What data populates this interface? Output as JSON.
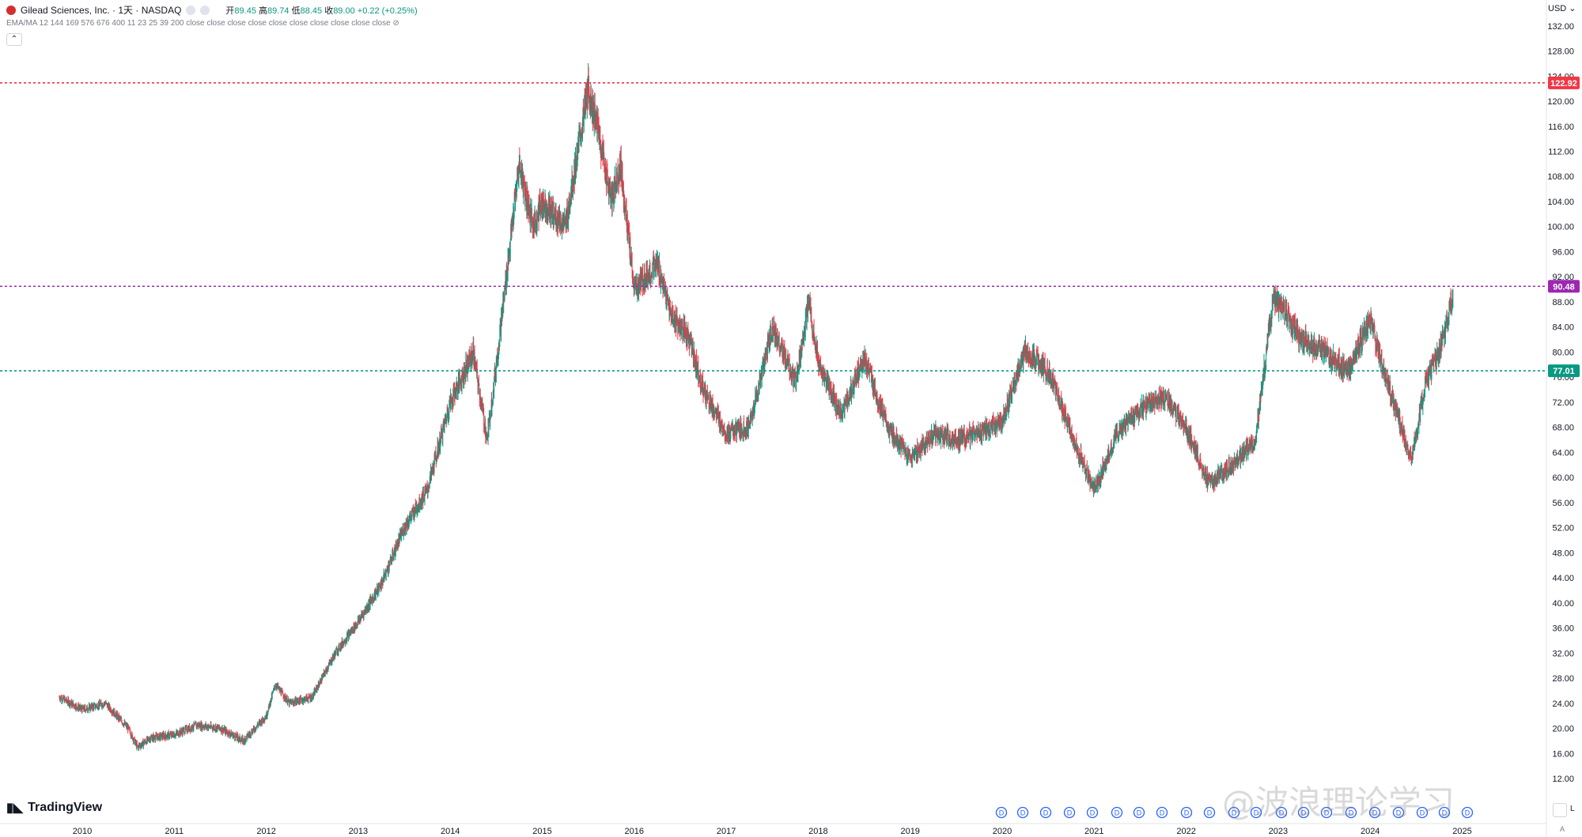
{
  "header": {
    "symbol": "Gilead Sciences, Inc. · 1天 · NASDAQ",
    "open_label": "开",
    "open": "89.45",
    "high_label": "高",
    "high": "89.74",
    "low_label": "低",
    "low": "88.45",
    "close_label": "收",
    "close": "89.00",
    "change": "+0.22 (+0.25%)",
    "indicator": "EMA/MA 12 144 169 576 676 400 11 23 25 39 200 close close close close close close close close close close"
  },
  "currency": "USD",
  "branding": "TradingView",
  "watermark": "@波浪理论学习",
  "colors": {
    "up": "#089981",
    "down": "#f23645",
    "red_line": "#f23645",
    "purple_line": "#9c27b0",
    "green_line": "#089981"
  },
  "chart_data": {
    "type": "line",
    "title": "Gilead Sciences, Inc. · 1天 · NASDAQ",
    "ylim": [
      12,
      132
    ],
    "yticks": [
      12,
      16,
      20,
      24,
      28,
      32,
      36,
      40,
      44,
      48,
      52,
      56,
      60,
      64,
      68,
      72,
      76,
      80,
      84,
      88,
      92,
      96,
      100,
      104,
      108,
      112,
      116,
      120,
      124,
      128,
      132
    ],
    "xticks": [
      "2010",
      "2011",
      "2012",
      "2013",
      "2014",
      "2015",
      "2016",
      "2017",
      "2018",
      "2019",
      "2020",
      "2021",
      "2022",
      "2023",
      "2024",
      "2025"
    ],
    "series": [
      {
        "values": [
          [
            2009.75,
            25
          ],
          [
            2010.0,
            23
          ],
          [
            2010.25,
            24
          ],
          [
            2010.5,
            20
          ],
          [
            2010.6,
            17
          ],
          [
            2010.75,
            18.5
          ],
          [
            2011.0,
            19
          ],
          [
            2011.25,
            20.5
          ],
          [
            2011.5,
            20
          ],
          [
            2011.75,
            18
          ],
          [
            2012.0,
            22
          ],
          [
            2012.1,
            27
          ],
          [
            2012.25,
            24
          ],
          [
            2012.5,
            25
          ],
          [
            2012.75,
            32
          ],
          [
            2013.0,
            37
          ],
          [
            2013.25,
            43
          ],
          [
            2013.5,
            52
          ],
          [
            2013.75,
            58
          ],
          [
            2014.0,
            72
          ],
          [
            2014.25,
            80
          ],
          [
            2014.4,
            66
          ],
          [
            2014.5,
            78
          ],
          [
            2014.75,
            110
          ],
          [
            2014.9,
            100
          ],
          [
            2015.0,
            104
          ],
          [
            2015.25,
            100
          ],
          [
            2015.5,
            122
          ],
          [
            2015.6,
            116
          ],
          [
            2015.75,
            104
          ],
          [
            2015.85,
            110
          ],
          [
            2016.0,
            90
          ],
          [
            2016.25,
            94
          ],
          [
            2016.4,
            86
          ],
          [
            2016.6,
            82
          ],
          [
            2016.75,
            74
          ],
          [
            2017.0,
            67
          ],
          [
            2017.25,
            68
          ],
          [
            2017.5,
            84
          ],
          [
            2017.75,
            75
          ],
          [
            2017.9,
            88
          ],
          [
            2018.0,
            78
          ],
          [
            2018.25,
            70
          ],
          [
            2018.5,
            79
          ],
          [
            2018.75,
            68
          ],
          [
            2019.0,
            63
          ],
          [
            2019.25,
            67
          ],
          [
            2019.5,
            66
          ],
          [
            2019.75,
            67
          ],
          [
            2020.0,
            69
          ],
          [
            2020.25,
            80
          ],
          [
            2020.5,
            77
          ],
          [
            2020.75,
            67
          ],
          [
            2021.0,
            58
          ],
          [
            2021.25,
            67
          ],
          [
            2021.5,
            71
          ],
          [
            2021.75,
            73
          ],
          [
            2022.0,
            68
          ],
          [
            2022.25,
            59
          ],
          [
            2022.5,
            62
          ],
          [
            2022.75,
            66
          ],
          [
            2022.95,
            89
          ],
          [
            2023.25,
            82
          ],
          [
            2023.5,
            80
          ],
          [
            2023.75,
            77
          ],
          [
            2024.0,
            85
          ],
          [
            2024.25,
            72
          ],
          [
            2024.45,
            63
          ],
          [
            2024.6,
            75
          ],
          [
            2024.75,
            80
          ],
          [
            2024.9,
            89
          ]
        ]
      }
    ],
    "hlines": [
      {
        "value": 122.92,
        "label": "122.92",
        "color": "#f23645"
      },
      {
        "value": 90.48,
        "label": "90.48",
        "color": "#9c27b0"
      },
      {
        "value": 77.01,
        "label": "77.01",
        "color": "#089981"
      }
    ],
    "grid": false
  }
}
